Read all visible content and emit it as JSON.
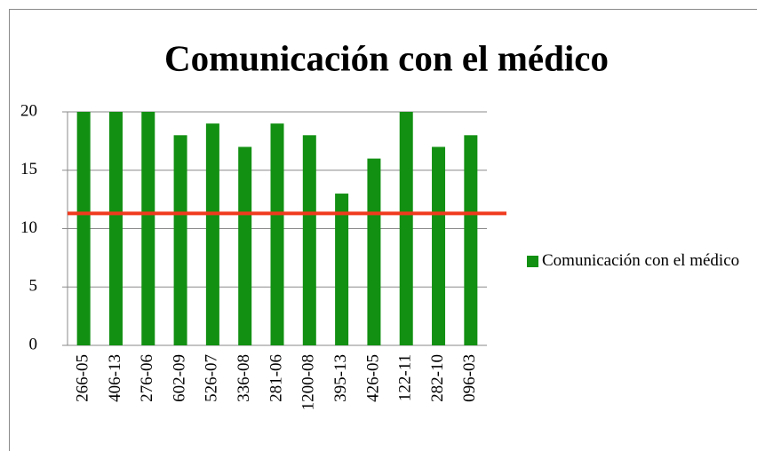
{
  "chart_data": {
    "type": "bar",
    "title": "Comunicación con el médico",
    "categories": [
      "266-05",
      "406-13",
      "276-06",
      "602-09",
      "526-07",
      "336-08",
      "281-06",
      "1200-08",
      "395-13",
      "426-05",
      "122-11",
      "282-10",
      "096-03"
    ],
    "series": [
      {
        "name": "Comunicación con el médico",
        "color": "#129012",
        "values": [
          20,
          20,
          20,
          18,
          19,
          17,
          19,
          18,
          13,
          16,
          20,
          17,
          18
        ]
      }
    ],
    "ylim": [
      0,
      20
    ],
    "yticks": [
      0,
      5,
      10,
      15,
      20
    ],
    "grid": true,
    "legend": "right",
    "reference_line": {
      "value": 11.3,
      "color": "#f03a1e"
    }
  }
}
